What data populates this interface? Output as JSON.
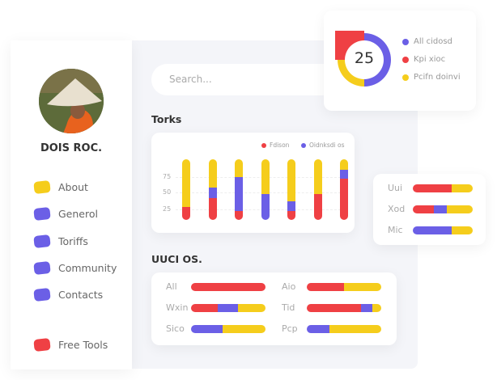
{
  "colors": {
    "red": "#ef4044",
    "purple": "#6b5fe6",
    "yellow": "#f5cd1c"
  },
  "profile": {
    "name": "DOIS ROC."
  },
  "nav": [
    {
      "label": "About",
      "color": "#f5cd1c"
    },
    {
      "label": "Generol",
      "color": "#6b5fe6"
    },
    {
      "label": "Toriffs",
      "color": "#6b5fe6"
    },
    {
      "label": "Community",
      "color": "#6b5fe6"
    },
    {
      "label": "Contacts",
      "color": "#6b5fe6"
    },
    {
      "label": "Free Tools",
      "color": "#ef4044"
    }
  ],
  "search": {
    "placeholder": "Search..."
  },
  "torks": {
    "title": "Torks"
  },
  "uuci": {
    "title": "UUCI OS."
  },
  "chart_data": [
    {
      "type": "bar",
      "stacked": true,
      "legend": [
        {
          "name": "Fdison",
          "color": "#ef4044"
        },
        {
          "name": "Oidnksdi os",
          "color": "#6b5fe6"
        }
      ],
      "yticks": [
        "75",
        "50",
        "25"
      ],
      "ylim": [
        0,
        100
      ],
      "grid": true,
      "legend_position": "top-right",
      "bars": [
        {
          "red": 22,
          "purple": 0,
          "yellow": 78
        },
        {
          "red": 36,
          "purple": 18,
          "yellow": 46
        },
        {
          "red": 15,
          "purple": 56,
          "yellow": 29
        },
        {
          "red": 0,
          "purple": 43,
          "yellow": 57
        },
        {
          "red": 15,
          "purple": 16,
          "yellow": 69
        },
        {
          "red": 43,
          "purple": 0,
          "yellow": 57
        },
        {
          "red": 68,
          "purple": 15,
          "yellow": 17
        }
      ]
    },
    {
      "type": "pie",
      "center_value": "25",
      "slices": [
        {
          "name": "All cidosd",
          "value": 50,
          "color": "#6b5fe6"
        },
        {
          "name": "Kpi xioc",
          "value": 25,
          "color": "#ef4044"
        },
        {
          "name": "Pcifn doinvi",
          "value": 25,
          "color": "#f5cd1c"
        }
      ]
    },
    {
      "type": "bar",
      "orientation": "horizontal",
      "stacked": true,
      "rows": [
        {
          "label": "Uui",
          "red": 65,
          "purple": 0,
          "yellow": 35
        },
        {
          "label": "Xod",
          "red": 35,
          "purple": 22,
          "yellow": 43
        },
        {
          "label": "Mic",
          "red": 0,
          "purple": 65,
          "yellow": 35
        }
      ]
    },
    {
      "type": "bar",
      "orientation": "horizontal",
      "stacked": true,
      "rows": [
        {
          "label": "All",
          "red": 100,
          "purple": 0,
          "yellow": 0
        },
        {
          "label": "Wxin",
          "red": 36,
          "purple": 27,
          "yellow": 37
        },
        {
          "label": "Sico",
          "red": 0,
          "purple": 42,
          "yellow": 58
        },
        {
          "label": "Aio",
          "red": 50,
          "purple": 0,
          "yellow": 50
        },
        {
          "label": "Tid",
          "red": 73,
          "purple": 15,
          "yellow": 12
        },
        {
          "label": "Pcp",
          "red": 0,
          "purple": 30,
          "yellow": 70
        }
      ]
    }
  ]
}
